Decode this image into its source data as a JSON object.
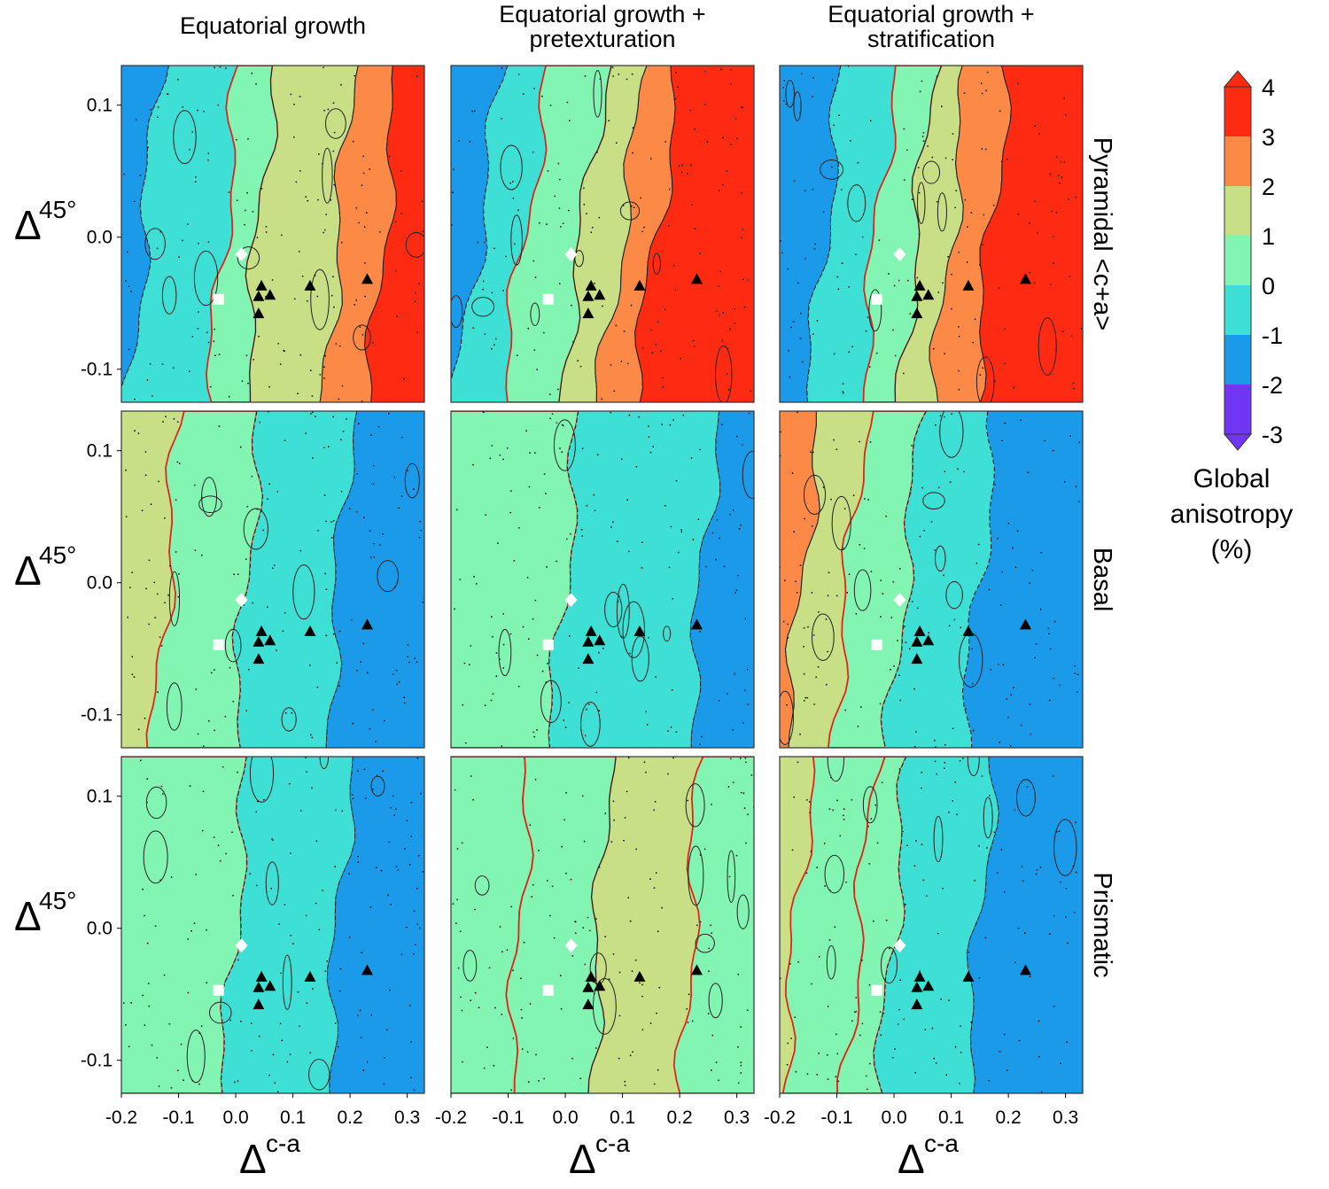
{
  "chart_data": {
    "type": "heatmap",
    "description_free": true,
    "columns": [
      "Equatorial growth",
      "Equatorial growth + pretexturation",
      "Equatorial growth + stratification"
    ],
    "column_title_lines": [
      [
        "Equatorial growth"
      ],
      [
        "Equatorial growth +",
        "pretexturation"
      ],
      [
        "Equatorial growth +",
        "stratification"
      ]
    ],
    "rows": [
      "Pyramidal <c+a>",
      "Basal",
      "Prismatic"
    ],
    "xlabel": "Δ",
    "xlabel_sup": "c-a",
    "ylabel": "Δ",
    "ylabel_sup": "45°",
    "xlim": [
      -0.2,
      0.33
    ],
    "ylim": [
      -0.125,
      0.13
    ],
    "xticks": [
      -0.2,
      -0.1,
      0.0,
      0.1,
      0.2,
      0.3
    ],
    "xtick_labels": [
      "-0.2",
      "-0.1",
      "0.0",
      "0.1",
      "0.2",
      "0.3"
    ],
    "yticks": [
      0.1,
      0.0,
      -0.1
    ],
    "ytick_labels": [
      "0.1",
      "0.0",
      "-0.1"
    ],
    "colorbar": {
      "label_lines": [
        "Global",
        "anisotropy",
        "(%)"
      ],
      "levels": [
        4,
        3,
        2,
        1,
        0,
        -1,
        -2,
        -3
      ],
      "level_labels": [
        "4",
        "3",
        "2",
        "1",
        "0",
        "-1",
        "-2",
        "-3"
      ],
      "colors": [
        "#ff2a12",
        "#fc8a46",
        "#c9df86",
        "#83f5b3",
        "#3ee0d5",
        "#1b9ae9",
        "#7136f4"
      ]
    },
    "markers": {
      "triangles": [
        [
          0.045,
          -0.037
        ],
        [
          0.04,
          -0.045
        ],
        [
          0.06,
          -0.044
        ],
        [
          0.04,
          -0.058
        ],
        [
          0.13,
          -0.037
        ],
        [
          0.23,
          -0.032
        ]
      ],
      "square": [
        -0.03,
        -0.047
      ],
      "diamond": [
        0.01,
        -0.013
      ]
    },
    "panels": [
      [
        {
          "bands": [
            [
              -0.2,
              -2
            ],
            [
              -0.16,
              -1
            ],
            [
              -0.02,
              0
            ],
            [
              0.04,
              1
            ],
            [
              0.18,
              2
            ],
            [
              0.26,
              3
            ]
          ],
          "slope": -0.35
        },
        {
          "bands": [
            [
              -0.2,
              -2
            ],
            [
              -0.15,
              -1
            ],
            [
              -0.07,
              0
            ],
            [
              0.03,
              1
            ],
            [
              0.1,
              2
            ],
            [
              0.16,
              3
            ]
          ],
          "slope": -0.55
        },
        {
          "bands": [
            [
              -0.2,
              -2
            ],
            [
              -0.12,
              -1
            ],
            [
              -0.03,
              0
            ],
            [
              0.04,
              1
            ],
            [
              0.1,
              2
            ],
            [
              0.17,
              3
            ]
          ],
          "slope": -0.4
        }
      ],
      [
        {
          "bands": [
            [
              -0.2,
              1
            ],
            [
              -0.12,
              0
            ],
            [
              0.02,
              -1
            ],
            [
              0.18,
              -2
            ]
          ],
          "slope": -0.3
        },
        {
          "bands": [
            [
              -0.2,
              0
            ],
            [
              0.0,
              -1
            ],
            [
              0.24,
              -2
            ]
          ],
          "slope": -0.35
        },
        {
          "bands": [
            [
              -0.2,
              2
            ],
            [
              -0.16,
              1
            ],
            [
              -0.08,
              0
            ],
            [
              0.02,
              -1
            ],
            [
              0.15,
              -2
            ]
          ],
          "slope": -0.4
        }
      ],
      [
        {
          "bands": [
            [
              -0.2,
              0
            ],
            [
              0.0,
              -1
            ],
            [
              0.18,
              -1.5
            ]
          ],
          "slope": -0.3
        },
        {
          "bands": [
            [
              -0.2,
              0
            ],
            [
              -0.08,
              0
            ],
            [
              0.06,
              1
            ],
            [
              0.22,
              0
            ]
          ],
          "slope": -0.2
        },
        {
          "bands": [
            [
              -0.2,
              1
            ],
            [
              -0.17,
              0
            ],
            [
              -0.06,
              0
            ],
            [
              0.0,
              -1
            ],
            [
              0.15,
              -2
            ]
          ],
          "slope": -0.35
        }
      ]
    ]
  }
}
